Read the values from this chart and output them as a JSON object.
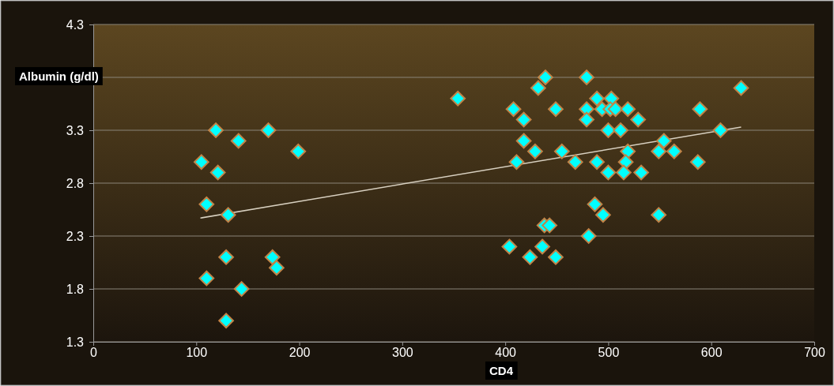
{
  "chart_data": {
    "type": "scatter",
    "xlabel": "CD4",
    "ylabel": "Albumin (g/dl)",
    "xlim": [
      0,
      700
    ],
    "xticks": [
      0,
      100,
      200,
      300,
      400,
      500,
      600,
      700
    ],
    "ylim": [
      1.3,
      4.3
    ],
    "yticks": [
      1.3,
      1.8,
      2.3,
      2.8,
      3.3,
      {
        "value": 3.8,
        "label": null
      },
      4.3
    ],
    "grid": "y",
    "series": [
      {
        "marker": "diamond",
        "color": "#00ffff",
        "x": [
          119,
          141,
          170,
          199,
          105,
          121,
          110,
          131,
          129,
          174,
          178,
          110,
          144,
          129,
          354,
          439,
          479,
          432,
          629,
          489,
          503,
          408,
          449,
          479,
          494,
          502,
          507,
          519,
          589,
          418,
          479,
          529,
          500,
          512,
          609,
          418,
          554,
          429,
          455,
          519,
          549,
          564,
          411,
          468,
          489,
          517,
          587,
          500,
          515,
          532,
          487,
          495,
          549,
          438,
          443,
          481,
          404,
          436,
          424,
          449
        ],
        "values": [
          3.3,
          3.2,
          3.3,
          3.1,
          3.0,
          2.9,
          2.6,
          2.5,
          2.1,
          2.1,
          2.0,
          1.9,
          1.8,
          1.5,
          3.6,
          3.8,
          3.8,
          3.7,
          3.7,
          3.6,
          3.6,
          3.5,
          3.5,
          3.5,
          3.5,
          3.5,
          3.5,
          3.5,
          3.5,
          3.4,
          3.4,
          3.4,
          3.3,
          3.3,
          3.3,
          3.2,
          3.2,
          3.1,
          3.1,
          3.1,
          3.1,
          3.1,
          3.0,
          3.0,
          3.0,
          3.0,
          3.0,
          2.9,
          2.9,
          2.9,
          2.6,
          2.5,
          2.5,
          2.4,
          2.4,
          2.3,
          2.2,
          2.2,
          2.1,
          2.1
        ]
      },
      {
        "type": "line",
        "color": "#d8d0c0",
        "x": [
          104,
          629
        ],
        "values": [
          2.47,
          3.33
        ]
      }
    ]
  }
}
